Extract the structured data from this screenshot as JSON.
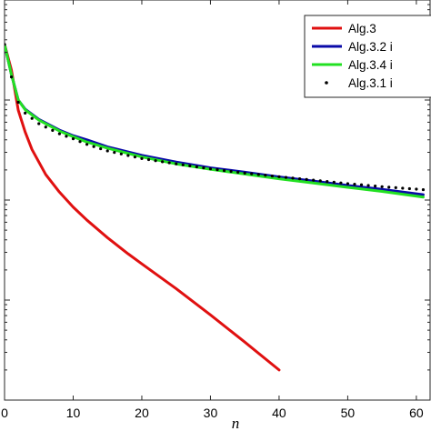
{
  "chart_data": {
    "type": "line",
    "title": "",
    "xlabel": "n",
    "ylabel": "",
    "xlim": [
      0,
      62
    ],
    "xticks": [
      "0",
      "10",
      "20",
      "30",
      "40",
      "50",
      "60"
    ],
    "yscale": "log",
    "ylim": [
      0.0001,
      1
    ],
    "grid": false,
    "legend": {
      "position": "top-right",
      "entries": [
        "Alg.3",
        "Alg.3.2 i",
        "Alg.3.4 i",
        "Alg.3.1 i"
      ]
    },
    "series": [
      {
        "name": "Alg.3",
        "color": "#e01010",
        "style": "solid",
        "x": [
          0,
          1,
          2,
          3,
          4,
          6,
          8,
          10,
          12,
          15,
          18,
          20,
          25,
          30,
          35,
          40
        ],
        "y": [
          0.36,
          0.2,
          0.079,
          0.048,
          0.032,
          0.018,
          0.012,
          0.0085,
          0.0063,
          0.0042,
          0.0029,
          0.0023,
          0.0013,
          0.00071,
          0.00038,
          0.0002
        ]
      },
      {
        "name": "Alg.3.2 i",
        "color": "#0a0aa8",
        "style": "solid",
        "x": [
          0,
          1,
          2,
          3,
          5,
          8,
          10,
          12,
          15,
          20,
          25,
          30,
          35,
          40,
          45,
          50,
          55,
          61
        ],
        "y": [
          0.36,
          0.18,
          0.1,
          0.081,
          0.064,
          0.05,
          0.044,
          0.04,
          0.034,
          0.028,
          0.024,
          0.021,
          0.019,
          0.017,
          0.0155,
          0.014,
          0.0128,
          0.0113
        ]
      },
      {
        "name": "Alg.3.4 i",
        "color": "#22e022",
        "style": "solid",
        "x": [
          0,
          1,
          2,
          3,
          5,
          8,
          10,
          12,
          15,
          20,
          25,
          30,
          35,
          40,
          45,
          50,
          55,
          61
        ],
        "y": [
          0.36,
          0.18,
          0.1,
          0.08,
          0.063,
          0.049,
          0.043,
          0.038,
          0.033,
          0.027,
          0.023,
          0.0203,
          0.0182,
          0.0163,
          0.0148,
          0.0134,
          0.0122,
          0.0107
        ]
      },
      {
        "name": "Alg.3.1 i",
        "color": "#000000",
        "style": "dotted",
        "x": [
          0,
          1,
          2,
          3,
          5,
          8,
          10,
          12,
          15,
          20,
          25,
          30,
          35,
          40,
          45,
          50,
          55,
          61
        ],
        "y": [
          0.36,
          0.17,
          0.095,
          0.074,
          0.058,
          0.046,
          0.041,
          0.036,
          0.031,
          0.026,
          0.023,
          0.0205,
          0.0186,
          0.0171,
          0.0158,
          0.0146,
          0.0136,
          0.0127
        ]
      }
    ]
  }
}
